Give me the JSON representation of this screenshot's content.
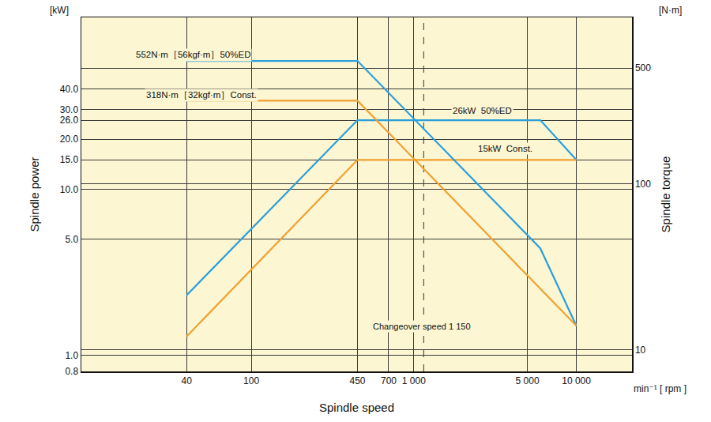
{
  "chart_data": {
    "type": "line",
    "log": true,
    "grid": true,
    "xlabel": "Spindle speed",
    "xunit": "min⁻¹ [ rpm ]",
    "ylabel": "Spindle power",
    "yunit": "[kW]",
    "y2label": "Spindle torque",
    "y2unit": "[N·m]",
    "xlim": [
      9,
      22000
    ],
    "xticks": [
      40,
      100,
      450,
      700,
      {
        "value": 1000,
        "label": "1 000"
      },
      {
        "value": 5000,
        "label": "5 000"
      },
      {
        "value": 10000,
        "label": "10 000"
      }
    ],
    "ylim": [
      0.8,
      108
    ],
    "yticks": [
      0.8,
      {
        "value": 1,
        "label": "1.0"
      },
      {
        "value": 5,
        "label": "5.0"
      },
      {
        "value": 10,
        "label": "10.0"
      },
      {
        "value": 15,
        "label": "15.0"
      },
      {
        "value": 20,
        "label": "20.0"
      },
      {
        "value": 26,
        "label": "26.0"
      },
      {
        "value": 30,
        "label": "30.0"
      },
      {
        "value": 40,
        "label": "40.0"
      }
    ],
    "y2lim": [
      7.43,
      1010
    ],
    "y2ticks": [
      10,
      100,
      500
    ],
    "reference_lines": {
      "x": [
        450,
        1150
      ],
      "label": "Changeover speed 1 150",
      "line_style": "dashed"
    },
    "series": [
      {
        "name": "552N·m［56kgf·m］50%ED",
        "color": "#2b9fdc",
        "axis": "y2",
        "line_style": "solid",
        "x": [
          40,
          450,
          6000,
          10000
        ],
        "values": [
          552,
          552,
          41,
          14
        ]
      },
      {
        "name": "318N·m［32kgf·m］Const.",
        "color": "#f0a030",
        "axis": "y2",
        "line_style": "solid",
        "x": [
          40,
          450,
          10000
        ],
        "values": [
          318,
          318,
          14
        ]
      },
      {
        "name": "26kW  50%ED",
        "color": "#2b9fdc",
        "axis": "y",
        "line_style": "solid",
        "x": [
          40,
          450,
          6000,
          10000
        ],
        "values": [
          2.3,
          26,
          26,
          15
        ]
      },
      {
        "name": "15kW  Const.",
        "color": "#f0a030",
        "axis": "y",
        "line_style": "solid",
        "x": [
          40,
          450,
          10000
        ],
        "values": [
          1.3,
          15,
          15
        ]
      }
    ]
  }
}
